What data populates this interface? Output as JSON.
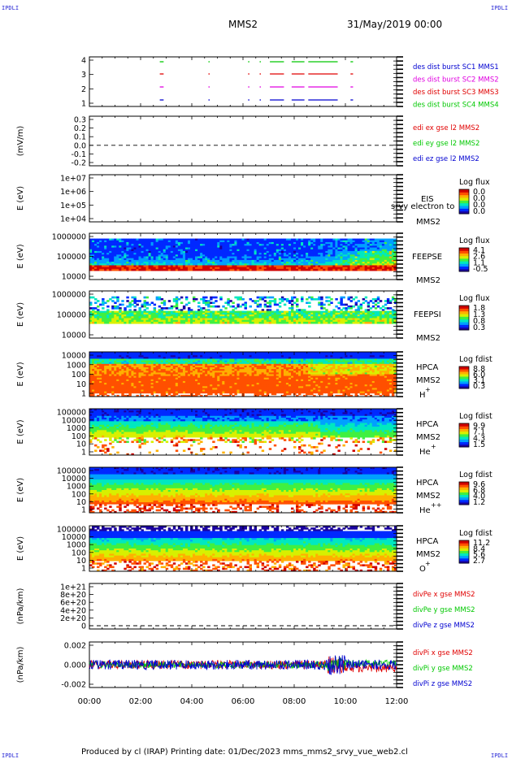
{
  "corners": {
    "tl": "IPDLI",
    "tr": "IPDLI",
    "bl": "IPDLI",
    "br": "IPDLI"
  },
  "header": {
    "spacecraft": "MMS2",
    "datetime": "31/May/2019 00:00"
  },
  "footer": {
    "text": "Produced by cl (IRAP)   Printing date: 01/Dec/2023   mms_mms2_srvy_vue_web2.cl"
  },
  "colors": {
    "red": "#e00000",
    "green": "#00c800",
    "blue": "#0000d0",
    "magenta": "#e000e0",
    "colormap": [
      "#1a00a0",
      "#0028ff",
      "#00a0ff",
      "#00e8c0",
      "#40f040",
      "#d8f000",
      "#ffb000",
      "#ff5000",
      "#d00000"
    ]
  },
  "chart_data": [
    {
      "id": "burst",
      "type": "scatter",
      "y_ticks": [
        "4",
        "3",
        "2",
        "1"
      ],
      "legend": [
        {
          "name": "des dist burst SC1 MMS1",
          "color": "#0000d0"
        },
        {
          "name": "des dist burst SC2 MMS2",
          "color": "#e000e0"
        },
        {
          "name": "des dist burst SC3 MMS3",
          "color": "#e00000"
        },
        {
          "name": "des dist burst SC4 MMS4",
          "color": "#00c800"
        }
      ],
      "segments": [
        [
          2.75,
          2.9
        ],
        [
          4.65,
          4.7
        ],
        [
          6.2,
          6.25
        ],
        [
          6.65,
          6.7
        ],
        [
          7.05,
          7.6
        ],
        [
          7.9,
          8.4
        ],
        [
          8.55,
          9.7
        ],
        [
          10.2,
          10.3
        ]
      ]
    },
    {
      "id": "edi",
      "type": "line",
      "ylabel": "(mV/m)",
      "y_ticks": [
        "0.3",
        "0.2",
        "0.1",
        "0.0",
        "-0.1",
        "-0.2"
      ],
      "legend": [
        {
          "name": "edi ex gse l2 MMS2",
          "color": "#e00000"
        },
        {
          "name": "edi ey gse l2 MMS2",
          "color": "#00c800"
        },
        {
          "name": "edi ez gse l2 MMS2",
          "color": "#0000d0"
        }
      ]
    },
    {
      "id": "eis",
      "type": "heatmap",
      "ylabel": "E (eV)",
      "y_ticks": [
        "1e+07",
        "1e+06",
        "1e+05",
        "1e+04"
      ],
      "labels": [
        "EIS",
        "MMS2"
      ],
      "overlay": "srvy electron to",
      "cbar_title": "Log flux",
      "cbar_ticks": [
        "0.0",
        "0.0",
        "0.0",
        "0.0"
      ]
    },
    {
      "id": "feepse",
      "type": "heatmap",
      "ylabel": "E (eV)",
      "y_ticks": [
        "1000000",
        "100000",
        "10000"
      ],
      "labels": [
        "FEEPSE",
        "MMS2"
      ],
      "cbar_title": "Log flux",
      "cbar_ticks": [
        "4.1",
        "2.6",
        "1.1",
        "-0.5"
      ]
    },
    {
      "id": "feepsi",
      "type": "heatmap",
      "ylabel": "E (eV)",
      "y_ticks": [
        "1000000",
        "100000",
        "10000"
      ],
      "labels": [
        "FEEPSI",
        "MMS2"
      ],
      "cbar_title": "Log flux",
      "cbar_ticks": [
        "1.8",
        "1.3",
        "0.8",
        "0.3"
      ]
    },
    {
      "id": "hpca_h",
      "type": "heatmap",
      "ylabel": "E (eV)",
      "y_ticks": [
        "10000",
        "1000",
        "100",
        "10",
        "1"
      ],
      "labels": [
        "HPCA",
        "MMS2",
        "H",
        "+"
      ],
      "cbar_title": "Log fdist",
      "cbar_ticks": [
        "8.8",
        "6.0",
        "3.1",
        "0.3"
      ]
    },
    {
      "id": "hpca_he",
      "type": "heatmap",
      "ylabel": "E (eV)",
      "y_ticks": [
        "100000",
        "10000",
        "1000",
        "100",
        "10",
        "1"
      ],
      "labels": [
        "HPCA",
        "MMS2",
        "He",
        "+"
      ],
      "cbar_title": "Log fdist",
      "cbar_ticks": [
        "9.9",
        "7.1",
        "4.3",
        "1.5"
      ]
    },
    {
      "id": "hpca_hepp",
      "type": "heatmap",
      "ylabel": "E (eV)",
      "y_ticks": [
        "100000",
        "10000",
        "1000",
        "100",
        "10",
        "1"
      ],
      "labels": [
        "HPCA",
        "MMS2",
        "He",
        "++"
      ],
      "cbar_title": "Log fdist",
      "cbar_ticks": [
        "9.6",
        "6.8",
        "4.0",
        "1.2"
      ]
    },
    {
      "id": "hpca_o",
      "type": "heatmap",
      "ylabel": "E (eV)",
      "y_ticks": [
        "100000",
        "10000",
        "1000",
        "100",
        "10",
        "1"
      ],
      "labels": [
        "HPCA",
        "MMS2",
        "O",
        "+"
      ],
      "cbar_title": "Log fdist",
      "cbar_ticks": [
        "11.2",
        "8.4",
        "5.6",
        "2.7"
      ]
    },
    {
      "id": "divpe",
      "type": "line",
      "ylabel": "(nPa/km)",
      "y_ticks": [
        "1e+21",
        "8e+20",
        "6e+20",
        "4e+20",
        "2e+20",
        "0"
      ],
      "legend": [
        {
          "name": "divPe x gse MMS2",
          "color": "#e00000"
        },
        {
          "name": "divPe y gse MMS2",
          "color": "#00c800"
        },
        {
          "name": "divPe z gse MMS2",
          "color": "#0000d0"
        }
      ]
    },
    {
      "id": "divpi",
      "type": "line",
      "ylabel": "(nPa/km)",
      "y_ticks": [
        "0.002",
        "0.000",
        "-0.002"
      ],
      "legend": [
        {
          "name": "divPi x gse MMS2",
          "color": "#e00000"
        },
        {
          "name": "divPi y gse MMS2",
          "color": "#00c800"
        },
        {
          "name": "divPi z gse MMS2",
          "color": "#0000d0"
        }
      ]
    }
  ],
  "x_axis": {
    "range_hours": [
      0,
      12
    ],
    "ticks": [
      "00:00",
      "02:00",
      "04:00",
      "06:00",
      "08:00",
      "10:00",
      "12:00"
    ]
  }
}
